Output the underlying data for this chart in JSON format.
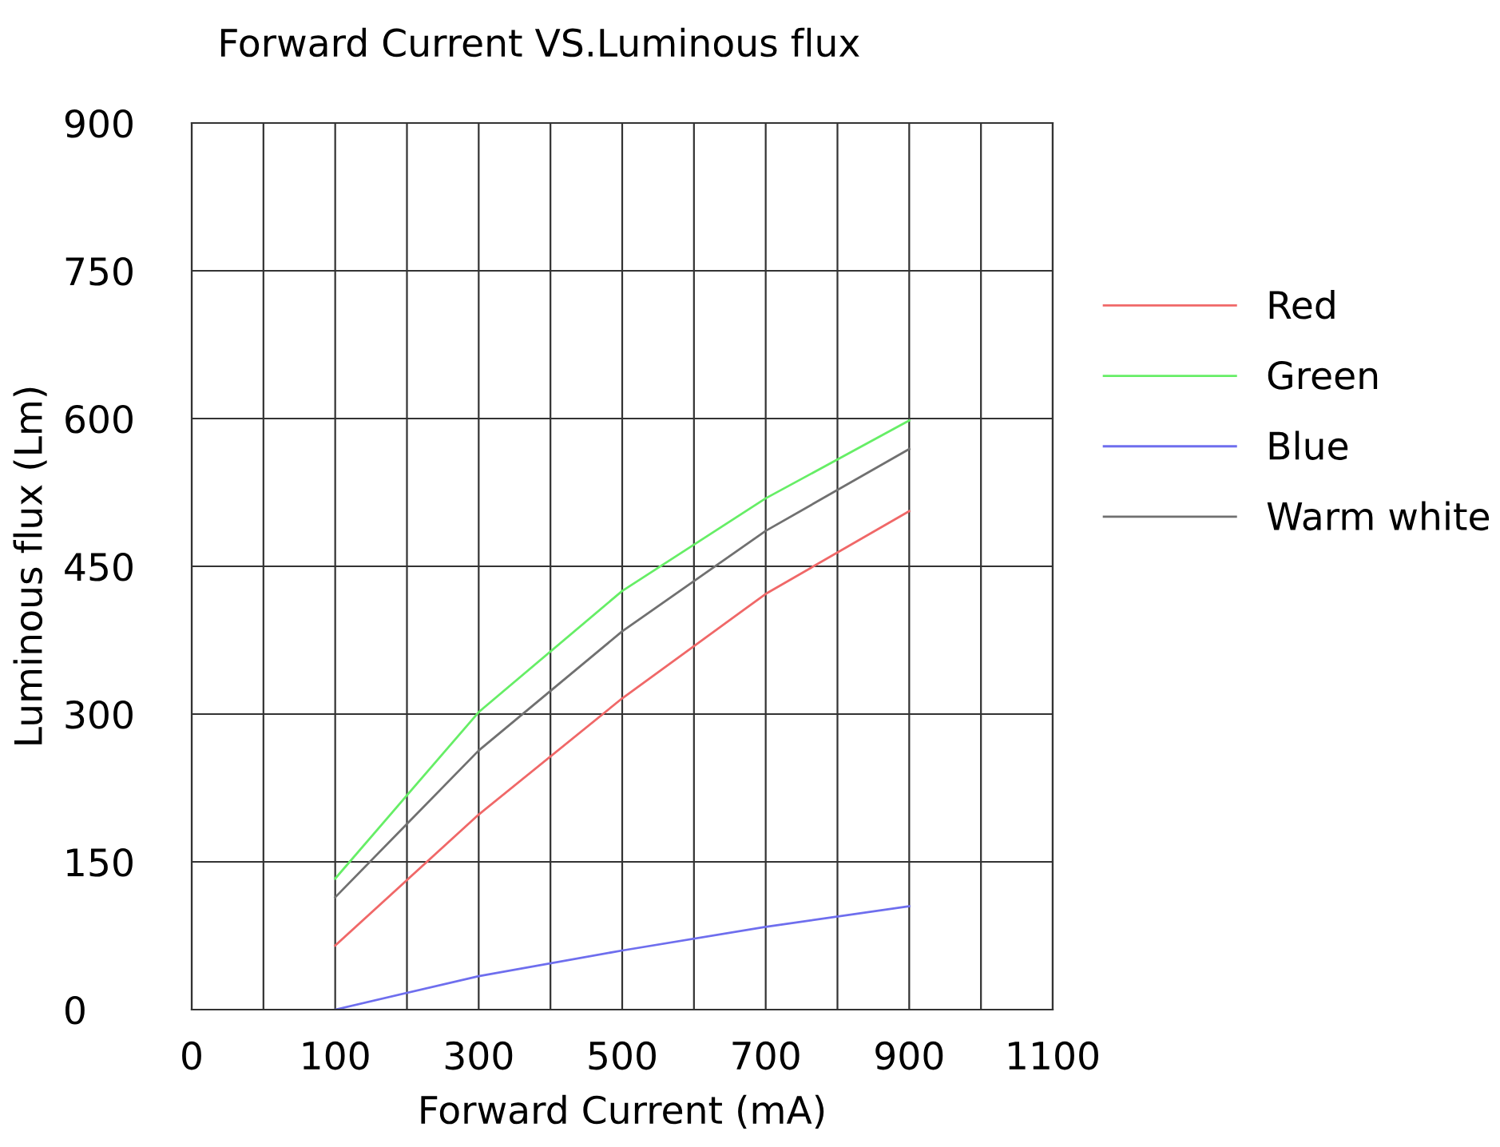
{
  "chart_data": {
    "type": "line",
    "title": "Forward Current VS.Luminous flux",
    "xlabel": "Forward Current (mA)",
    "ylabel": "Luminous flux (Lm)",
    "categories": [
      "0",
      null,
      "100",
      null,
      "300",
      null,
      "500",
      null,
      "700",
      null,
      "900",
      null,
      "1100"
    ],
    "series": [
      {
        "name": "Red",
        "color": "#f06868",
        "values": [
          null,
          null,
          65,
          null,
          198,
          null,
          316,
          null,
          422,
          null,
          506,
          null,
          null
        ]
      },
      {
        "name": "Green",
        "color": "#66ee66",
        "values": [
          null,
          null,
          133,
          null,
          302,
          null,
          425,
          null,
          519,
          null,
          598,
          null,
          null
        ]
      },
      {
        "name": "Blue",
        "color": "#6e6eee",
        "values": [
          null,
          null,
          0,
          null,
          34,
          null,
          60,
          null,
          84,
          null,
          105,
          null,
          null
        ]
      },
      {
        "name": "Warm white",
        "color": "#707070",
        "values": [
          null,
          null,
          114,
          null,
          263,
          null,
          384,
          null,
          486,
          null,
          569,
          null,
          null
        ]
      }
    ],
    "ylim": [
      0,
      900
    ],
    "yticks": [
      0,
      150,
      300,
      450,
      600,
      750,
      900
    ],
    "grid": true,
    "legend": "right",
    "marker": "none",
    "line_style": "solid"
  }
}
